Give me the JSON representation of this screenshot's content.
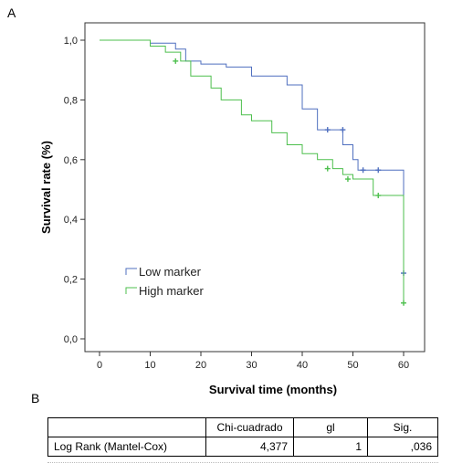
{
  "panel_a_label": "A",
  "panel_b_label": "B",
  "chart_data": {
    "type": "line",
    "step": true,
    "xlabel": "Survival time (months)",
    "ylabel": "Survival rate (%)",
    "xlim": [
      0,
      60
    ],
    "ylim": [
      0,
      1
    ],
    "xticks": [
      0,
      10,
      20,
      30,
      40,
      50,
      60
    ],
    "xtick_labels": [
      "0",
      "10",
      "20",
      "30",
      "40",
      "50",
      "60"
    ],
    "yticks": [
      0,
      0.2,
      0.4,
      0.6,
      0.8,
      1.0
    ],
    "ytick_labels": [
      "0,0",
      "0,2",
      "0,4",
      "0,6",
      "0,8",
      "1,0"
    ],
    "grid": false,
    "legend_position": "lower-left",
    "series": [
      {
        "name": "Low marker",
        "color": "#4f6fbf",
        "x": [
          0,
          10,
          15,
          17,
          20,
          25,
          30,
          37,
          40,
          43,
          48,
          50,
          51,
          60
        ],
        "y": [
          1.0,
          0.99,
          0.97,
          0.93,
          0.92,
          0.91,
          0.88,
          0.85,
          0.77,
          0.7,
          0.65,
          0.6,
          0.565,
          0.22
        ],
        "censored": [
          [
            45,
            0.7
          ],
          [
            48,
            0.7
          ],
          [
            52,
            0.565
          ],
          [
            55,
            0.565
          ],
          [
            60,
            0.22
          ]
        ]
      },
      {
        "name": "High marker",
        "color": "#4dbf4d",
        "x": [
          0,
          10,
          13,
          16,
          18,
          22,
          24,
          28,
          30,
          34,
          37,
          40,
          43,
          46,
          48,
          50,
          54,
          60
        ],
        "y": [
          1.0,
          0.98,
          0.96,
          0.93,
          0.88,
          0.84,
          0.8,
          0.75,
          0.73,
          0.69,
          0.65,
          0.62,
          0.6,
          0.57,
          0.55,
          0.535,
          0.48,
          0.12
        ],
        "censored": [
          [
            15,
            0.93
          ],
          [
            45,
            0.57
          ],
          [
            49,
            0.535
          ],
          [
            55,
            0.48
          ],
          [
            60,
            0.12
          ]
        ]
      }
    ]
  },
  "test_table": {
    "headers": [
      "",
      "Chi-cuadrado",
      "gl",
      "Sig."
    ],
    "rows": [
      {
        "label": "Log Rank (Mantel-Cox)",
        "chi": "4,377",
        "gl": "1",
        "sig": ",036"
      }
    ]
  }
}
